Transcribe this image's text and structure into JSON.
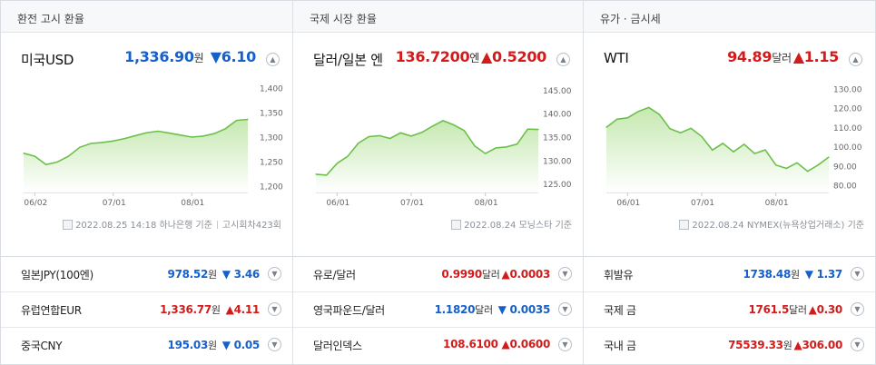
{
  "columns": [
    {
      "header": "환전 고시 환율",
      "main": {
        "name": "미국USD",
        "price": "1,336.90",
        "unit": "원",
        "direction": "down",
        "arrow": "▼",
        "change": "6.10"
      },
      "chart_data": {
        "type": "area",
        "x": [
          "05/27",
          "06/01",
          "06/06",
          "06/10",
          "06/15",
          "06/20",
          "06/24",
          "06/29",
          "07/01",
          "07/06",
          "07/11",
          "07/15",
          "07/20",
          "07/25",
          "07/29",
          "08/01",
          "08/05",
          "08/10",
          "08/15",
          "08/19",
          "08/25"
        ],
        "values": [
          1268,
          1262,
          1245,
          1250,
          1262,
          1280,
          1288,
          1290,
          1293,
          1298,
          1304,
          1310,
          1313,
          1309,
          1305,
          1301,
          1303,
          1308,
          1318,
          1335,
          1336.9
        ],
        "xtick_labels": [
          "06/02",
          "07/01",
          "08/01"
        ],
        "ytick_labels": [
          "1,400",
          "1,350",
          "1,300",
          "1,250",
          "1,200"
        ],
        "ylim": [
          1190,
          1410
        ]
      },
      "source_date": "2022.08.25 14:18",
      "source": "하나은행 기준",
      "source_extra": "고시회차423회",
      "rows": [
        {
          "name": "일본JPY(100엔)",
          "price": "978.52",
          "unit": "원",
          "direction": "down",
          "arrow": "▼",
          "change": "3.46"
        },
        {
          "name": "유럽연합EUR",
          "price": "1,336.77",
          "unit": "원",
          "direction": "up",
          "arrow": "▲",
          "change": "4.11"
        },
        {
          "name": "중국CNY",
          "price": "195.03",
          "unit": "원",
          "direction": "down",
          "arrow": "▼",
          "change": "0.05"
        }
      ]
    },
    {
      "header": "국제 시장 환율",
      "main": {
        "name": "달러/일본 엔",
        "price": "136.7200",
        "unit": "엔",
        "direction": "up",
        "arrow": "▲",
        "change": "0.5200"
      },
      "chart_data": {
        "type": "area",
        "x": [
          "05/25",
          "05/30",
          "06/01",
          "06/06",
          "06/10",
          "06/15",
          "06/20",
          "06/24",
          "06/29",
          "07/01",
          "07/06",
          "07/11",
          "07/15",
          "07/20",
          "07/25",
          "07/29",
          "08/01",
          "08/05",
          "08/10",
          "08/15",
          "08/19",
          "08/24"
        ],
        "values": [
          127.2,
          127.0,
          129.5,
          131.0,
          133.8,
          135.2,
          135.4,
          134.8,
          136.0,
          135.3,
          136.1,
          137.4,
          138.6,
          137.7,
          136.5,
          133.2,
          131.6,
          132.8,
          133.0,
          133.6,
          136.8,
          136.72
        ],
        "xtick_labels": [
          "06/01",
          "07/01",
          "08/01"
        ],
        "ytick_labels": [
          "145.00",
          "140.00",
          "135.00",
          "130.00",
          "125.00"
        ],
        "ylim": [
          123.5,
          146.5
        ]
      },
      "source_date": "2022.08.24",
      "source": "모닝스타 기준",
      "rows": [
        {
          "name": "유로/달러",
          "price": "0.9990",
          "unit": "달러",
          "direction": "up",
          "arrow": "▲",
          "change": "0.0003"
        },
        {
          "name": "영국파운드/달러",
          "price": "1.1820",
          "unit": "달러",
          "direction": "down",
          "arrow": "▼",
          "change": "0.0035"
        },
        {
          "name": "달러인덱스",
          "price": "108.6100",
          "unit": "",
          "direction": "up",
          "arrow": "▲",
          "change": "0.0600"
        }
      ]
    },
    {
      "header": "유가 · 금시세",
      "main": {
        "name": "WTI",
        "price": "94.89",
        "unit": "달러",
        "direction": "up",
        "arrow": "▲",
        "change": "1.15"
      },
      "chart_data": {
        "type": "area",
        "x": [
          "05/25",
          "05/30",
          "06/01",
          "06/06",
          "06/10",
          "06/15",
          "06/20",
          "06/24",
          "06/29",
          "07/01",
          "07/06",
          "07/11",
          "07/15",
          "07/20",
          "07/25",
          "07/29",
          "08/01",
          "08/05",
          "08/10",
          "08/15",
          "08/19",
          "08/24"
        ],
        "values": [
          110.3,
          114.5,
          115.2,
          118.5,
          120.6,
          117.0,
          109.6,
          107.5,
          109.8,
          105.5,
          98.5,
          102.0,
          97.6,
          101.5,
          96.7,
          98.6,
          90.8,
          89.0,
          91.9,
          87.5,
          90.8,
          94.89
        ],
        "xtick_labels": [
          "06/01",
          "07/01",
          "08/01"
        ],
        "ytick_labels": [
          "130.00",
          "120.00",
          "110.00",
          "100.00",
          "90.00",
          "80.00"
        ],
        "ylim": [
          77,
          133
        ]
      },
      "source_date": "2022.08.24",
      "source": "NYMEX(뉴욕상업거래소) 기준",
      "rows": [
        {
          "name": "휘발유",
          "price": "1738.48",
          "unit": "원",
          "direction": "down",
          "arrow": "▼",
          "change": "1.37"
        },
        {
          "name": "국제 금",
          "price": "1761.5",
          "unit": "달러",
          "direction": "up",
          "arrow": "▲",
          "change": "0.30"
        },
        {
          "name": "국내 금",
          "price": "75539.33",
          "unit": "원",
          "direction": "up",
          "arrow": "▲",
          "change": "306.00"
        }
      ]
    }
  ],
  "colors": {
    "up": "#d41b1b",
    "down": "#1660cc",
    "line": "#6cc04a",
    "fill_top": "#bfe6a7",
    "fill_bottom": "#ffffff"
  },
  "icons": {
    "toggle": "chevron-up-icon",
    "row_toggle": "chevron-down-icon",
    "source": "document-icon"
  }
}
